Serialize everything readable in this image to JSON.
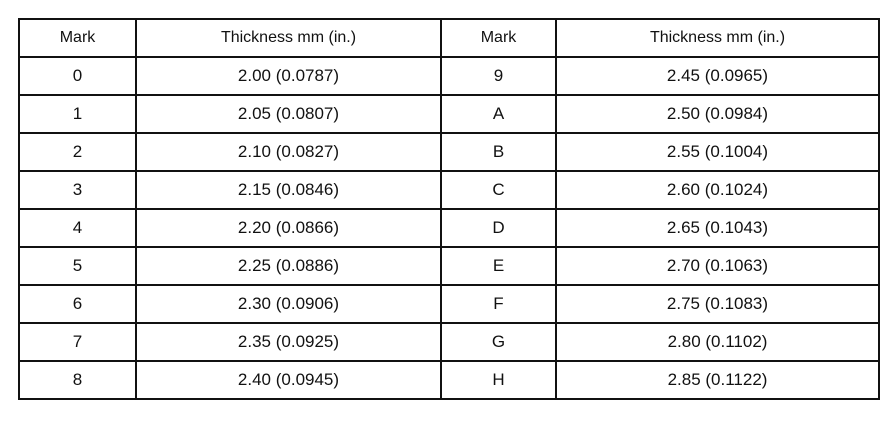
{
  "table": {
    "header": [
      "Mark",
      "Thickness mm (in.)",
      "Mark",
      "Thickness mm (in.)"
    ],
    "rows": [
      [
        "0",
        "2.00 (0.0787)",
        "9",
        "2.45 (0.0965)"
      ],
      [
        "1",
        "2.05 (0.0807)",
        "A",
        "2.50 (0.0984)"
      ],
      [
        "2",
        "2.10 (0.0827)",
        "B",
        "2.55 (0.1004)"
      ],
      [
        "3",
        "2.15 (0.0846)",
        "C",
        "2.60 (0.1024)"
      ],
      [
        "4",
        "2.20 (0.0866)",
        "D",
        "2.65 (0.1043)"
      ],
      [
        "5",
        "2.25 (0.0886)",
        "E",
        "2.70 (0.1063)"
      ],
      [
        "6",
        "2.30 (0.0906)",
        "F",
        "2.75 (0.1083)"
      ],
      [
        "7",
        "2.35 (0.0925)",
        "G",
        "2.80 (0.1102)"
      ],
      [
        "8",
        "2.40 (0.0945)",
        "H",
        "2.85 (0.1122)"
      ]
    ]
  }
}
